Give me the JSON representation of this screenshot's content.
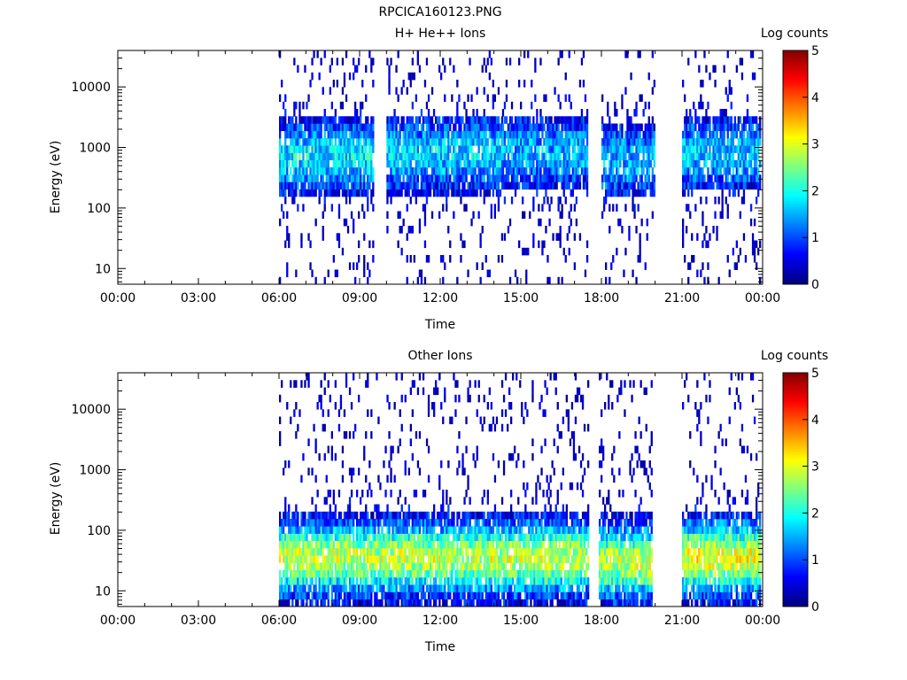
{
  "title": "RPCICA160123.PNG",
  "chart_data": [
    {
      "type": "heatmap",
      "title": "H+ He++ Ions",
      "xlabel": "Time",
      "ylabel": "Energy (eV)",
      "colorbar_label": "Log counts",
      "colorbar_ticks": [
        "0",
        "1",
        "2",
        "3",
        "4",
        "5"
      ],
      "colorbar_range": [
        0,
        5
      ],
      "x_ticks": [
        "00:00",
        "03:00",
        "06:00",
        "09:00",
        "12:00",
        "15:00",
        "18:00",
        "21:00",
        "00:00"
      ],
      "x_range_hours": [
        0,
        24
      ],
      "y_scale": "log",
      "y_ticks": [
        "10",
        "100",
        "1000",
        "10000"
      ],
      "y_range": [
        5.5,
        40000
      ],
      "colormap": [
        "#00007f",
        "#0000ff",
        "#007fff",
        "#00ffff",
        "#7fff7f",
        "#ffff00",
        "#ff7f00",
        "#ff0000",
        "#7f0000"
      ],
      "data_windows": [
        {
          "start": 6.0,
          "end": 9.5,
          "peak_energy": 700,
          "intensity": 1.8
        },
        {
          "start": 10.0,
          "end": 14.3,
          "peak_energy": 800,
          "intensity": 1.7
        },
        {
          "start": 14.3,
          "end": 17.5,
          "peak_energy": 800,
          "intensity": 1.5
        },
        {
          "start": 18.0,
          "end": 20.0,
          "peak_energy": 600,
          "intensity": 1.5
        },
        {
          "start": 21.0,
          "end": 23.9,
          "peak_energy": 800,
          "intensity": 1.6
        }
      ]
    },
    {
      "type": "heatmap",
      "title": "Other Ions",
      "xlabel": "Time",
      "ylabel": "Energy (eV)",
      "colorbar_label": "Log counts",
      "colorbar_ticks": [
        "0",
        "1",
        "2",
        "3",
        "4",
        "5"
      ],
      "colorbar_range": [
        0,
        5
      ],
      "x_ticks": [
        "00:00",
        "03:00",
        "06:00",
        "09:00",
        "12:00",
        "15:00",
        "18:00",
        "21:00",
        "00:00"
      ],
      "x_range_hours": [
        0,
        24
      ],
      "y_scale": "log",
      "y_ticks": [
        "10",
        "100",
        "1000",
        "10000"
      ],
      "y_range": [
        5.5,
        40000
      ],
      "colormap": [
        "#00007f",
        "#0000ff",
        "#007fff",
        "#00ffff",
        "#7fff7f",
        "#ffff00",
        "#ff7f00",
        "#ff0000",
        "#7f0000"
      ],
      "data_windows": [
        {
          "start": 6.0,
          "end": 17.5,
          "peak_energy": 35,
          "intensity": 2.8
        },
        {
          "start": 17.9,
          "end": 19.9,
          "peak_energy": 30,
          "intensity": 2.8
        },
        {
          "start": 21.0,
          "end": 23.9,
          "peak_energy": 35,
          "intensity": 3.0
        }
      ]
    }
  ]
}
